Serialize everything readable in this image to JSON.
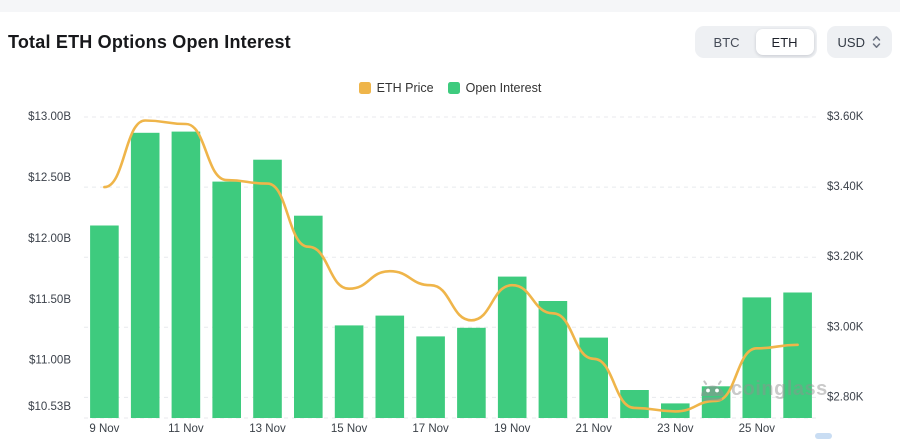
{
  "header": {
    "title": "Total ETH Options Open Interest",
    "coin_toggle": {
      "options": [
        "BTC",
        "ETH"
      ],
      "selected": "ETH"
    },
    "currency_select": {
      "value": "USD"
    }
  },
  "legend": {
    "items": [
      {
        "label": "ETH Price",
        "color": "#efb54a"
      },
      {
        "label": "Open Interest",
        "color": "#3ecb7e"
      }
    ]
  },
  "watermark": {
    "brand": "coinglass"
  },
  "chart_data": {
    "type": "bar+line",
    "title": "Total ETH Options Open Interest",
    "categories": [
      "9 Nov",
      "10 Nov",
      "11 Nov",
      "12 Nov",
      "13 Nov",
      "14 Nov",
      "15 Nov",
      "16 Nov",
      "17 Nov",
      "18 Nov",
      "19 Nov",
      "20 Nov",
      "21 Nov",
      "22 Nov",
      "23 Nov",
      "24 Nov",
      "25 Nov",
      "26 Nov"
    ],
    "x_tick_labels_shown": [
      "9 Nov",
      "11 Nov",
      "13 Nov",
      "15 Nov",
      "17 Nov",
      "19 Nov",
      "21 Nov",
      "23 Nov",
      "25 Nov"
    ],
    "series": [
      {
        "name": "Open Interest",
        "type": "bar",
        "axis": "left",
        "unit": "USD billions",
        "color": "#3ecb7e",
        "values": [
          12.11,
          12.87,
          12.88,
          12.47,
          12.65,
          12.19,
          11.29,
          11.37,
          11.2,
          11.27,
          11.69,
          11.49,
          11.19,
          10.76,
          10.65,
          10.79,
          11.52,
          11.56
        ]
      },
      {
        "name": "ETH Price",
        "type": "line",
        "axis": "right",
        "unit": "USD thousands",
        "color": "#efb54a",
        "values": [
          3.4,
          3.59,
          3.58,
          3.42,
          3.41,
          3.23,
          3.11,
          3.16,
          3.12,
          3.02,
          3.12,
          3.04,
          2.91,
          2.77,
          2.76,
          2.79,
          2.94,
          2.95
        ]
      }
    ],
    "left_axis": {
      "tick_labels": [
        "$13.00B",
        "$12.50B",
        "$12.00B",
        "$11.50B",
        "$11.00B",
        "$10.53B"
      ],
      "tick_values": [
        13.0,
        12.5,
        12.0,
        11.5,
        11.0,
        10.53
      ],
      "range": [
        10.53,
        13.0
      ]
    },
    "right_axis": {
      "tick_labels": [
        "$3.60K",
        "$3.40K",
        "$3.20K",
        "$3.00K",
        "$2.80K"
      ],
      "tick_values": [
        3.6,
        3.4,
        3.2,
        3.0,
        2.8
      ],
      "gridline_range": [
        2.8,
        3.6
      ]
    },
    "grid": "horizontal-dashed",
    "legend_position": "top-center"
  }
}
